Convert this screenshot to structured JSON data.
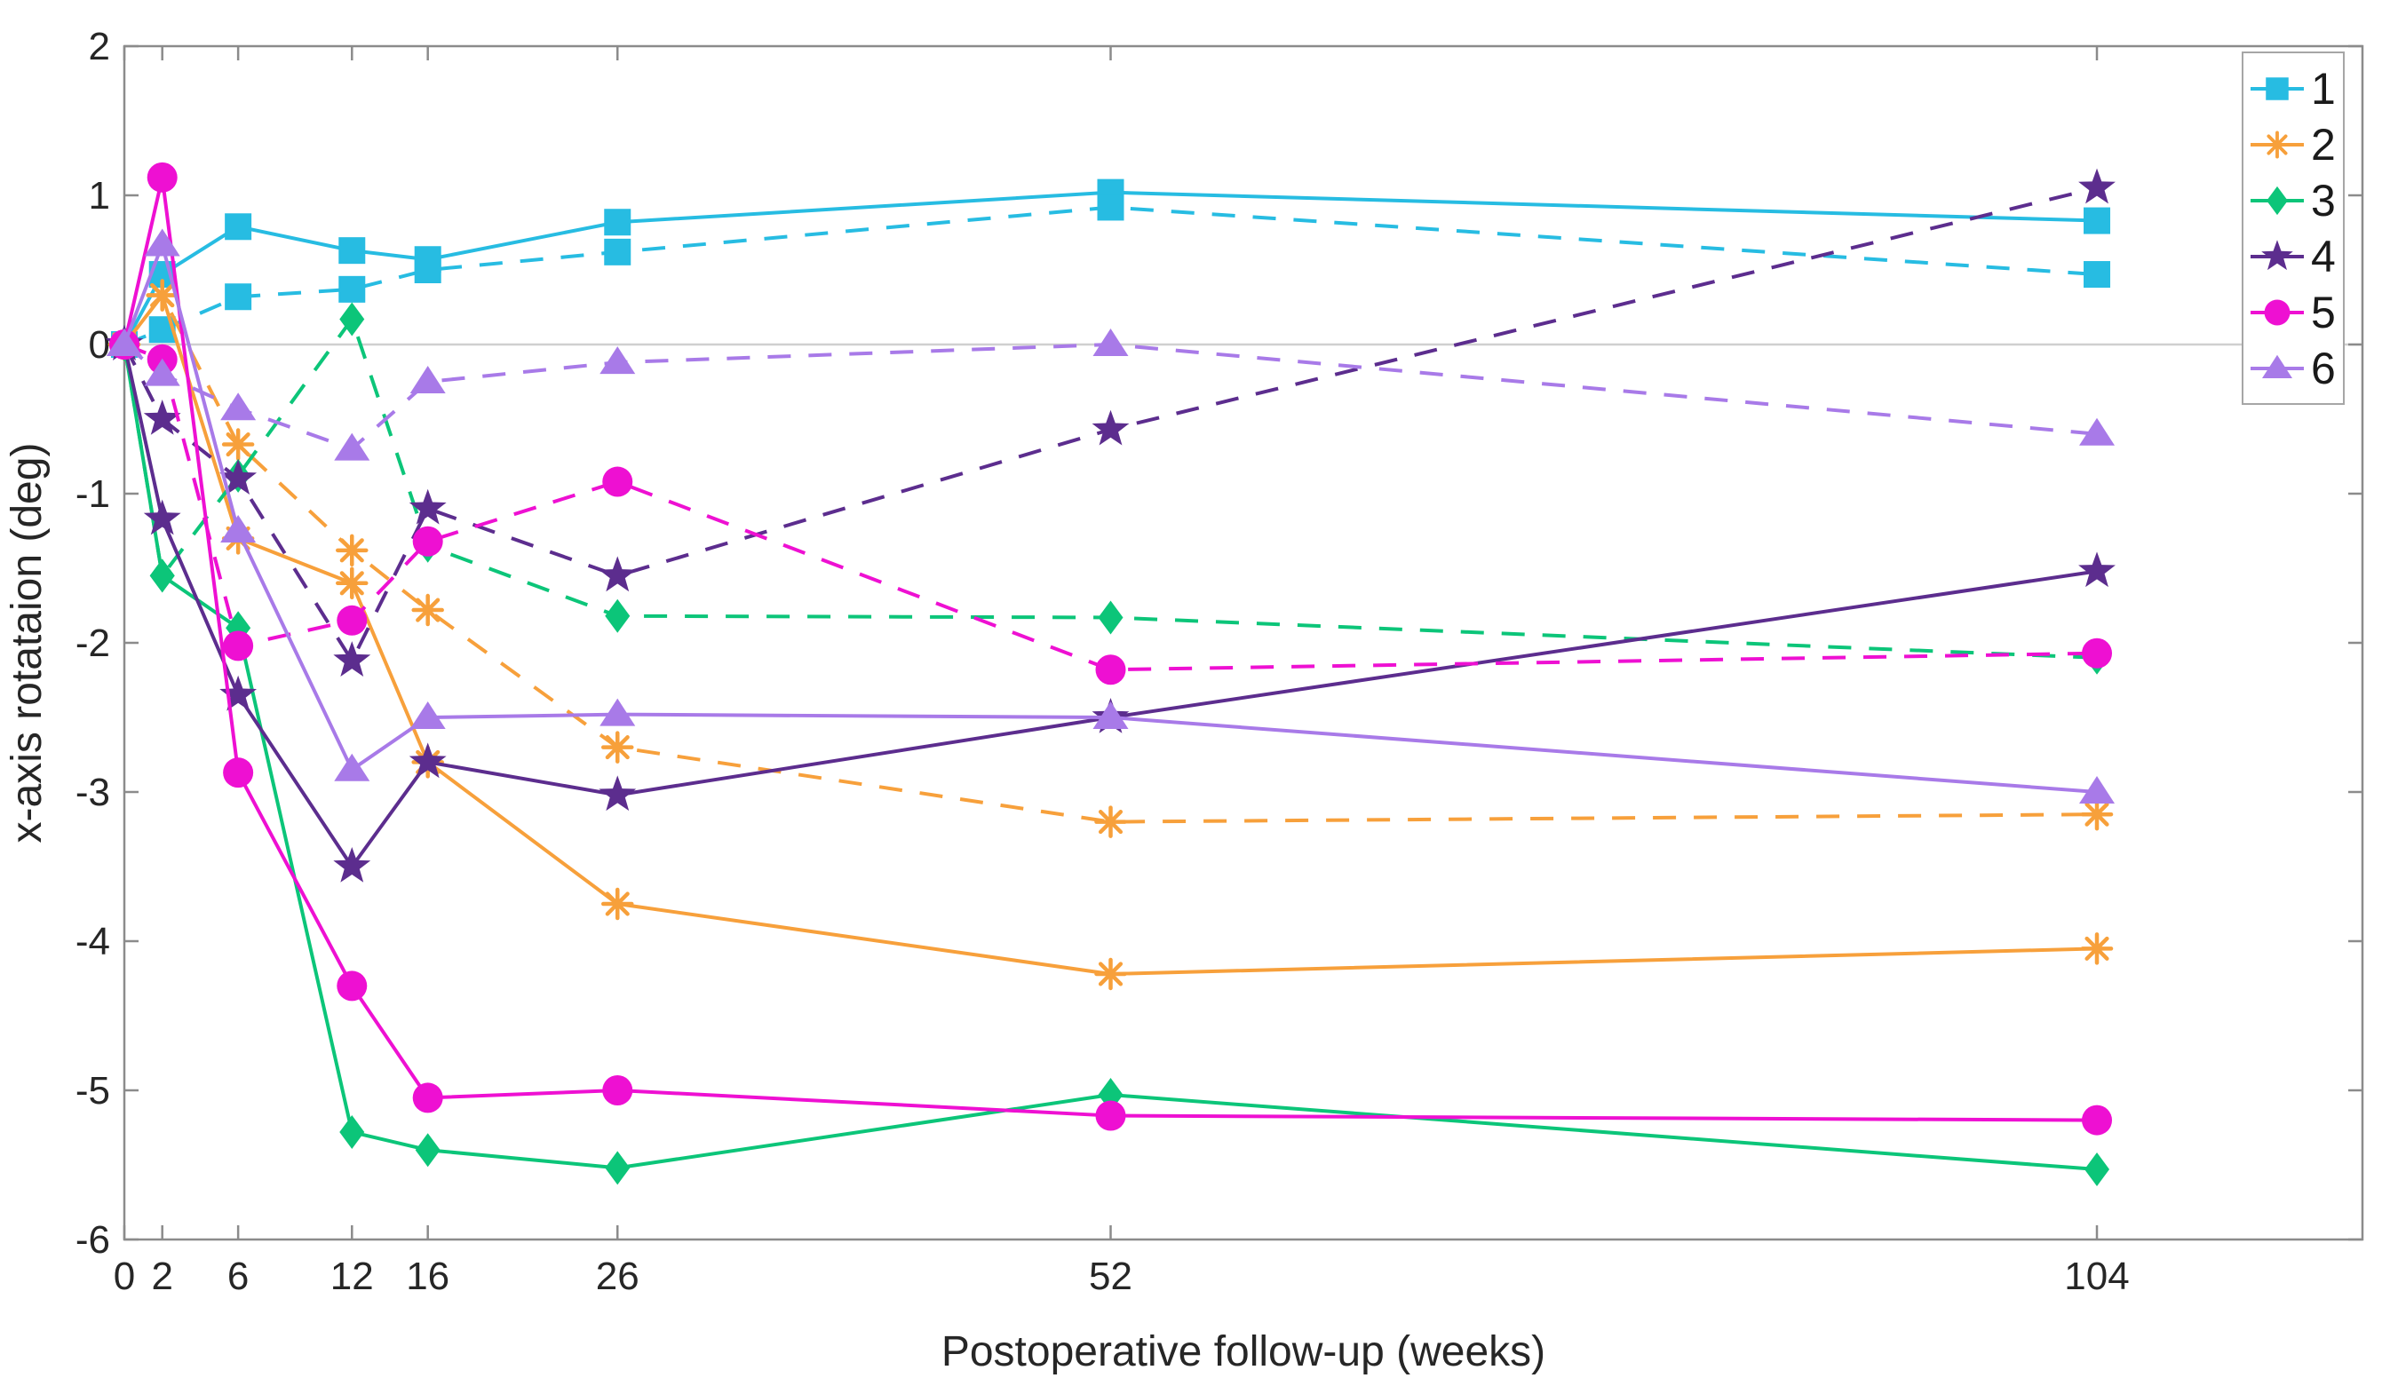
{
  "figure": {
    "background": "#ffffff",
    "axis_box_color": "#8b8b8b",
    "tick_label_color": "#262626",
    "zero_line_color": "#d0d0d0"
  },
  "chart_data": {
    "type": "line",
    "title": "",
    "xlabel": "Postoperative follow-up (weeks)",
    "ylabel": "x-axis rotataion (deg)",
    "x": [
      0,
      2,
      6,
      12,
      16,
      26,
      52,
      104
    ],
    "xticks": [
      0,
      2,
      6,
      12,
      16,
      26,
      52,
      104
    ],
    "yticks": [
      2,
      1,
      0,
      -1,
      -2,
      -3,
      -4,
      -5,
      -6
    ],
    "xlim": [
      0,
      118
    ],
    "ylim": [
      -6,
      2
    ],
    "zero_line": 0,
    "grid": "zero-line-only",
    "legend": {
      "position": "top-right",
      "labels": [
        "1",
        "2",
        "3",
        "4",
        "5",
        "6"
      ]
    },
    "series": [
      {
        "name": "1",
        "style": "solid",
        "color": "#27BCE2",
        "marker": "square",
        "values": [
          0,
          0.47,
          0.79,
          0.63,
          0.57,
          0.82,
          1.02,
          0.83
        ]
      },
      {
        "name": "1",
        "style": "dashed",
        "color": "#27BCE2",
        "marker": "square",
        "values": [
          0,
          0.1,
          0.32,
          0.37,
          0.5,
          0.62,
          0.92,
          0.47
        ]
      },
      {
        "name": "2",
        "style": "solid",
        "color": "#F7A03B",
        "marker": "asterisk",
        "values": [
          0,
          0.33,
          -1.3,
          -1.6,
          -2.8,
          -3.75,
          -4.22,
          -4.05
        ]
      },
      {
        "name": "2",
        "style": "dashed",
        "color": "#F7A03B",
        "marker": "asterisk",
        "values": [
          0,
          0.33,
          -0.67,
          -1.38,
          -1.78,
          -2.7,
          -3.2,
          -3.15
        ]
      },
      {
        "name": "3",
        "style": "solid",
        "color": "#0CC579",
        "marker": "diamond",
        "values": [
          0,
          -1.55,
          -1.9,
          -5.28,
          -5.4,
          -5.52,
          -5.03,
          -5.53
        ]
      },
      {
        "name": "3",
        "style": "dashed",
        "color": "#0CC579",
        "marker": "diamond",
        "values": [
          0,
          -1.55,
          -0.88,
          0.17,
          -1.35,
          -1.82,
          -1.83,
          -2.1
        ]
      },
      {
        "name": "4",
        "style": "solid",
        "color": "#5C2D8E",
        "marker": "star",
        "values": [
          0,
          -1.17,
          -2.35,
          -3.5,
          -2.8,
          -3.02,
          -2.5,
          -1.52
        ]
      },
      {
        "name": "4",
        "style": "dashed",
        "color": "#5C2D8E",
        "marker": "star",
        "values": [
          0,
          -0.5,
          -0.9,
          -2.12,
          -1.1,
          -1.55,
          -0.57,
          1.05
        ]
      },
      {
        "name": "5",
        "style": "solid",
        "color": "#EE10D2",
        "marker": "circle",
        "values": [
          0,
          1.12,
          -2.87,
          -4.3,
          -5.05,
          -5.0,
          -5.17,
          -5.2
        ]
      },
      {
        "name": "5",
        "style": "dashed",
        "color": "#EE10D2",
        "marker": "circle",
        "values": [
          0,
          -0.1,
          -2.02,
          -1.85,
          -1.32,
          -0.92,
          -2.18,
          -2.07
        ]
      },
      {
        "name": "6",
        "style": "solid",
        "color": "#A87AE8",
        "marker": "triangle",
        "values": [
          0,
          0.67,
          -1.25,
          -2.85,
          -2.5,
          -2.48,
          -2.5,
          -3.0
        ]
      },
      {
        "name": "6",
        "style": "dashed",
        "color": "#A87AE8",
        "marker": "triangle",
        "values": [
          0,
          -0.2,
          -0.43,
          -0.7,
          -0.25,
          -0.12,
          0.0,
          -0.6
        ]
      }
    ]
  }
}
